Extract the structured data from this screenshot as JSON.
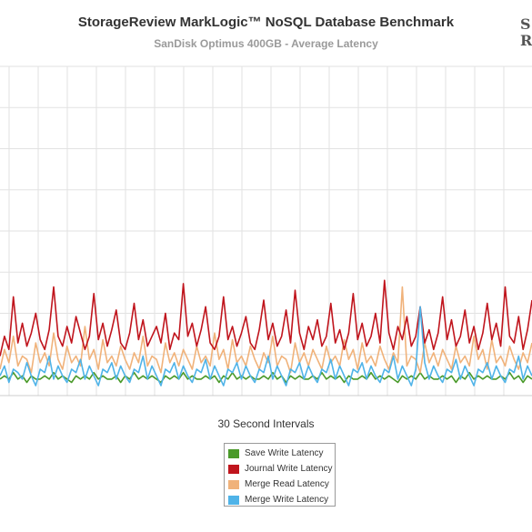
{
  "chart_data": {
    "type": "line",
    "title": "StorageReview MarkLogic™ NoSQL Database Benchmark",
    "subtitle": "SanDisk Optimus 400GB - Average Latency",
    "xlabel": "30 Second Intervals",
    "ylabel": "",
    "grid": true,
    "legend_position": "bottom-center",
    "x": [
      0,
      1,
      2,
      3,
      4,
      5,
      6,
      7,
      8,
      9,
      10,
      11,
      12,
      13,
      14,
      15,
      16,
      17,
      18,
      19,
      20,
      21,
      22,
      23,
      24,
      25,
      26,
      27,
      28,
      29,
      30,
      31,
      32,
      33,
      34,
      35,
      36,
      37,
      38,
      39,
      40,
      41,
      42,
      43,
      44,
      45,
      46,
      47,
      48,
      49,
      50,
      51,
      52,
      53,
      54,
      55,
      56,
      57,
      58,
      59,
      60,
      61,
      62,
      63,
      64,
      65,
      66,
      67,
      68,
      69,
      70,
      71,
      72,
      73,
      74,
      75,
      76,
      77,
      78,
      79,
      80,
      81,
      82,
      83,
      84,
      85,
      86,
      87,
      88,
      89,
      90,
      91,
      92,
      93,
      94,
      95,
      96,
      97,
      98,
      99,
      100,
      101,
      102,
      103,
      104,
      105,
      106,
      107,
      108,
      109,
      110,
      111,
      112,
      113,
      114,
      115,
      116,
      117,
      118,
      119
    ],
    "ylim": [
      0,
      100
    ],
    "series": [
      {
        "name": "Save Write Latency",
        "color": "#4a9a2a",
        "values": [
          5,
          6,
          5,
          7,
          5,
          6,
          4,
          6,
          5,
          5,
          6,
          5,
          7,
          5,
          6,
          5,
          4,
          6,
          5,
          6,
          5,
          7,
          5,
          6,
          5,
          5,
          6,
          4,
          6,
          5,
          7,
          5,
          6,
          5,
          6,
          5,
          4,
          6,
          5,
          6,
          5,
          7,
          5,
          6,
          5,
          5,
          6,
          5,
          6,
          4,
          6,
          5,
          7,
          5,
          6,
          5,
          6,
          5,
          5,
          6,
          5,
          7,
          5,
          6,
          4,
          6,
          5,
          6,
          5,
          5,
          6,
          5,
          7,
          5,
          6,
          5,
          6,
          4,
          6,
          5,
          5,
          6,
          5,
          7,
          5,
          6,
          5,
          6,
          5,
          4,
          6,
          5,
          6,
          5,
          7,
          5,
          6,
          5,
          5,
          6,
          5,
          6,
          4,
          6,
          5,
          7,
          5,
          6,
          5,
          6,
          5,
          5,
          6,
          5,
          7,
          5,
          6,
          4,
          6,
          5
        ]
      },
      {
        "name": "Journal Write Latency",
        "color": "#c0151d",
        "values": [
          12,
          18,
          14,
          30,
          16,
          22,
          15,
          19,
          25,
          17,
          14,
          20,
          33,
          18,
          15,
          21,
          16,
          24,
          19,
          14,
          18,
          31,
          17,
          22,
          15,
          20,
          26,
          16,
          14,
          19,
          28,
          17,
          23,
          15,
          18,
          21,
          16,
          25,
          14,
          19,
          17,
          34,
          18,
          22,
          15,
          20,
          27,
          16,
          14,
          18,
          30,
          17,
          21,
          15,
          19,
          24,
          16,
          14,
          20,
          29,
          17,
          22,
          15,
          18,
          26,
          16,
          32,
          19,
          14,
          21,
          17,
          23,
          15,
          18,
          28,
          16,
          20,
          14,
          19,
          31,
          17,
          22,
          15,
          18,
          25,
          16,
          35,
          19,
          14,
          21,
          17,
          24,
          15,
          18,
          27,
          16,
          20,
          14,
          19,
          30,
          17,
          23,
          15,
          18,
          26,
          16,
          21,
          14,
          19,
          28,
          17,
          22,
          15,
          33,
          18,
          16,
          24,
          14,
          20,
          29
        ]
      },
      {
        "name": "Merge Read Latency",
        "color": "#f0b27a",
        "values": [
          8,
          14,
          10,
          18,
          9,
          12,
          11,
          7,
          16,
          10,
          13,
          9,
          19,
          11,
          8,
          15,
          10,
          12,
          9,
          21,
          11,
          14,
          8,
          17,
          10,
          12,
          9,
          15,
          11,
          8,
          13,
          10,
          18,
          9,
          12,
          11,
          7,
          16,
          10,
          13,
          9,
          14,
          11,
          8,
          15,
          10,
          12,
          9,
          19,
          11,
          14,
          8,
          17,
          10,
          12,
          9,
          15,
          11,
          8,
          13,
          10,
          18,
          9,
          12,
          11,
          7,
          16,
          10,
          13,
          9,
          14,
          11,
          8,
          15,
          10,
          12,
          9,
          17,
          11,
          14,
          8,
          16,
          10,
          12,
          9,
          15,
          11,
          8,
          13,
          10,
          33,
          9,
          12,
          11,
          7,
          16,
          10,
          13,
          9,
          14,
          11,
          8,
          15,
          10,
          12,
          9,
          18,
          11,
          14,
          8,
          17,
          10,
          12,
          9,
          15,
          11,
          8,
          13,
          10,
          16
        ]
      },
      {
        "name": "Merge Write Latency",
        "color": "#4fb3e8",
        "values": [
          6,
          9,
          4,
          8,
          7,
          5,
          10,
          6,
          3,
          8,
          7,
          12,
          5,
          9,
          6,
          4,
          8,
          7,
          11,
          5,
          9,
          6,
          3,
          8,
          7,
          10,
          5,
          9,
          6,
          4,
          8,
          7,
          12,
          5,
          9,
          6,
          3,
          8,
          7,
          10,
          5,
          9,
          6,
          4,
          8,
          7,
          11,
          5,
          9,
          6,
          3,
          8,
          7,
          10,
          5,
          9,
          6,
          4,
          8,
          7,
          12,
          5,
          9,
          6,
          3,
          8,
          7,
          10,
          5,
          9,
          6,
          4,
          8,
          7,
          11,
          5,
          9,
          6,
          3,
          8,
          7,
          10,
          5,
          9,
          6,
          4,
          8,
          7,
          12,
          5,
          9,
          6,
          3,
          8,
          27,
          10,
          5,
          9,
          6,
          4,
          8,
          7,
          11,
          5,
          9,
          6,
          3,
          8,
          7,
          10,
          5,
          9,
          6,
          4,
          8,
          7,
          12,
          5,
          9,
          6
        ]
      }
    ]
  }
}
